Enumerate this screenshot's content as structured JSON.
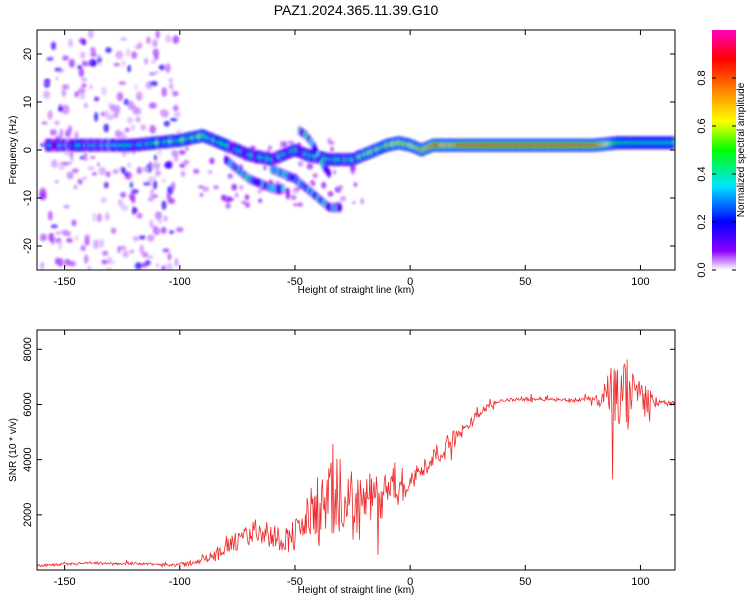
{
  "title": "PAZ1.2024.365.11.39.G10",
  "colors": {
    "snr_line": "#ee2a2a",
    "colormap": [
      "#ffffff",
      "#8b00ff",
      "#0000ff",
      "#00e5ff",
      "#00ff00",
      "#ffff00",
      "#ff8000",
      "#ff0000",
      "#ff00c0"
    ]
  },
  "chart_data": [
    {
      "type": "heatmap",
      "xlabel": "Height of straight line (km)",
      "ylabel": "Frequency (Hz)",
      "xlim": [
        -162,
        115
      ],
      "ylim": [
        -25,
        25
      ],
      "xticks": [
        -150,
        -100,
        -50,
        0,
        50,
        100
      ],
      "yticks": [
        -20,
        -10,
        0,
        10,
        20
      ],
      "xtick_labels": [
        "-150",
        "-100",
        "-50",
        "0",
        "50",
        "100"
      ],
      "ytick_labels": [
        "-20",
        "-10",
        "0",
        "10",
        "20"
      ],
      "colorbar": {
        "label": "Normalized spectral amplitude",
        "range": [
          0,
          1
        ],
        "ticks": [
          0.0,
          0.2,
          0.4,
          0.6,
          0.8
        ],
        "tick_labels": [
          "0.0",
          "0.2",
          "0.4",
          "0.6",
          "0.8"
        ]
      },
      "main_ridge": {
        "x": [
          -158,
          -150,
          -140,
          -130,
          -120,
          -110,
          -100,
          -90,
          -85,
          -80,
          -75,
          -70,
          -65,
          -60,
          -55,
          -50,
          -45,
          -40,
          -35,
          -30,
          -25,
          -20,
          -15,
          -10,
          -5,
          0,
          5,
          10,
          20,
          40,
          60,
          80,
          90,
          100,
          110,
          115
        ],
        "f": [
          1,
          1,
          1,
          1,
          1,
          1.5,
          2,
          3,
          2,
          1,
          0,
          -1,
          -1.5,
          -2,
          -1,
          0,
          -1,
          -1.5,
          -2,
          -2,
          -2,
          -1,
          0,
          1,
          1.5,
          1,
          0,
          1,
          1,
          1,
          1,
          1,
          1.5,
          1.5,
          1.5,
          1.5
        ],
        "amp": [
          0.3,
          0.25,
          0.3,
          0.25,
          0.35,
          0.45,
          0.45,
          0.45,
          0.4,
          0.35,
          0.3,
          0.35,
          0.35,
          0.35,
          0.35,
          0.35,
          0.35,
          0.35,
          0.35,
          0.35,
          0.4,
          0.45,
          0.5,
          0.55,
          0.6,
          0.65,
          0.7,
          0.8,
          0.85,
          0.9,
          0.9,
          0.85,
          0.45,
          0.4,
          0.4,
          0.4
        ]
      },
      "secondary_tracks": [
        {
          "x": [
            -80,
            -75,
            -70,
            -65,
            -60,
            -55
          ],
          "f": [
            -2,
            -4,
            -6,
            -7,
            -8,
            -8
          ]
        },
        {
          "x": [
            -60,
            -55,
            -50,
            -45,
            -40,
            -35,
            -30
          ],
          "f": [
            -4,
            -5,
            -6,
            -8,
            -10,
            -12,
            -12
          ]
        },
        {
          "x": [
            -48,
            -45,
            -42,
            -40,
            -38,
            -35
          ],
          "f": [
            4,
            3,
            1,
            -1,
            -3,
            -5
          ]
        }
      ],
      "noise_region_x": [
        -160,
        -100
      ]
    },
    {
      "type": "line",
      "xlabel": "Height of straight line (km)",
      "ylabel": "SNR (10 * v/v)",
      "xlim": [
        -162,
        115
      ],
      "ylim": [
        0,
        8700
      ],
      "xticks": [
        -150,
        -100,
        -50,
        0,
        50,
        100
      ],
      "yticks": [
        2000,
        4000,
        6000,
        8000
      ],
      "xtick_labels": [
        "-150",
        "-100",
        "-50",
        "0",
        "50",
        "100"
      ],
      "ytick_labels": [
        "2000",
        "4000",
        "6000",
        "8000"
      ],
      "series": [
        {
          "x": [
            -162,
            -150,
            -140,
            -130,
            -120,
            -110,
            -100,
            -95,
            -90,
            -85,
            -80,
            -75,
            -70,
            -65,
            -60,
            -55,
            -50,
            -45,
            -40,
            -35,
            -30,
            -25,
            -20,
            -15,
            -10,
            -5,
            0,
            5,
            10,
            15,
            20,
            25,
            30,
            35,
            40,
            50,
            60,
            70,
            80,
            85,
            90,
            95,
            100,
            105,
            110,
            115
          ],
          "y": [
            150,
            200,
            250,
            220,
            250,
            200,
            200,
            250,
            400,
            500,
            800,
            1000,
            1300,
            1500,
            1200,
            1100,
            1300,
            1800,
            2200,
            2300,
            2300,
            2400,
            2500,
            2600,
            2700,
            3000,
            3200,
            3600,
            4100,
            4400,
            4800,
            5200,
            5700,
            6000,
            6150,
            6200,
            6200,
            6150,
            6200,
            6200,
            6200,
            6300,
            6300,
            6100,
            6050,
            6050
          ],
          "ripple": [
            60,
            60,
            60,
            60,
            60,
            60,
            80,
            120,
            180,
            250,
            350,
            450,
            500,
            600,
            500,
            500,
            700,
            1100,
            1500,
            1700,
            1700,
            1500,
            1300,
            1100,
            900,
            700,
            600,
            500,
            450,
            400,
            350,
            250,
            180,
            120,
            80,
            80,
            80,
            80,
            120,
            900,
            1800,
            1800,
            900,
            300,
            150,
            120
          ]
        }
      ]
    }
  ]
}
